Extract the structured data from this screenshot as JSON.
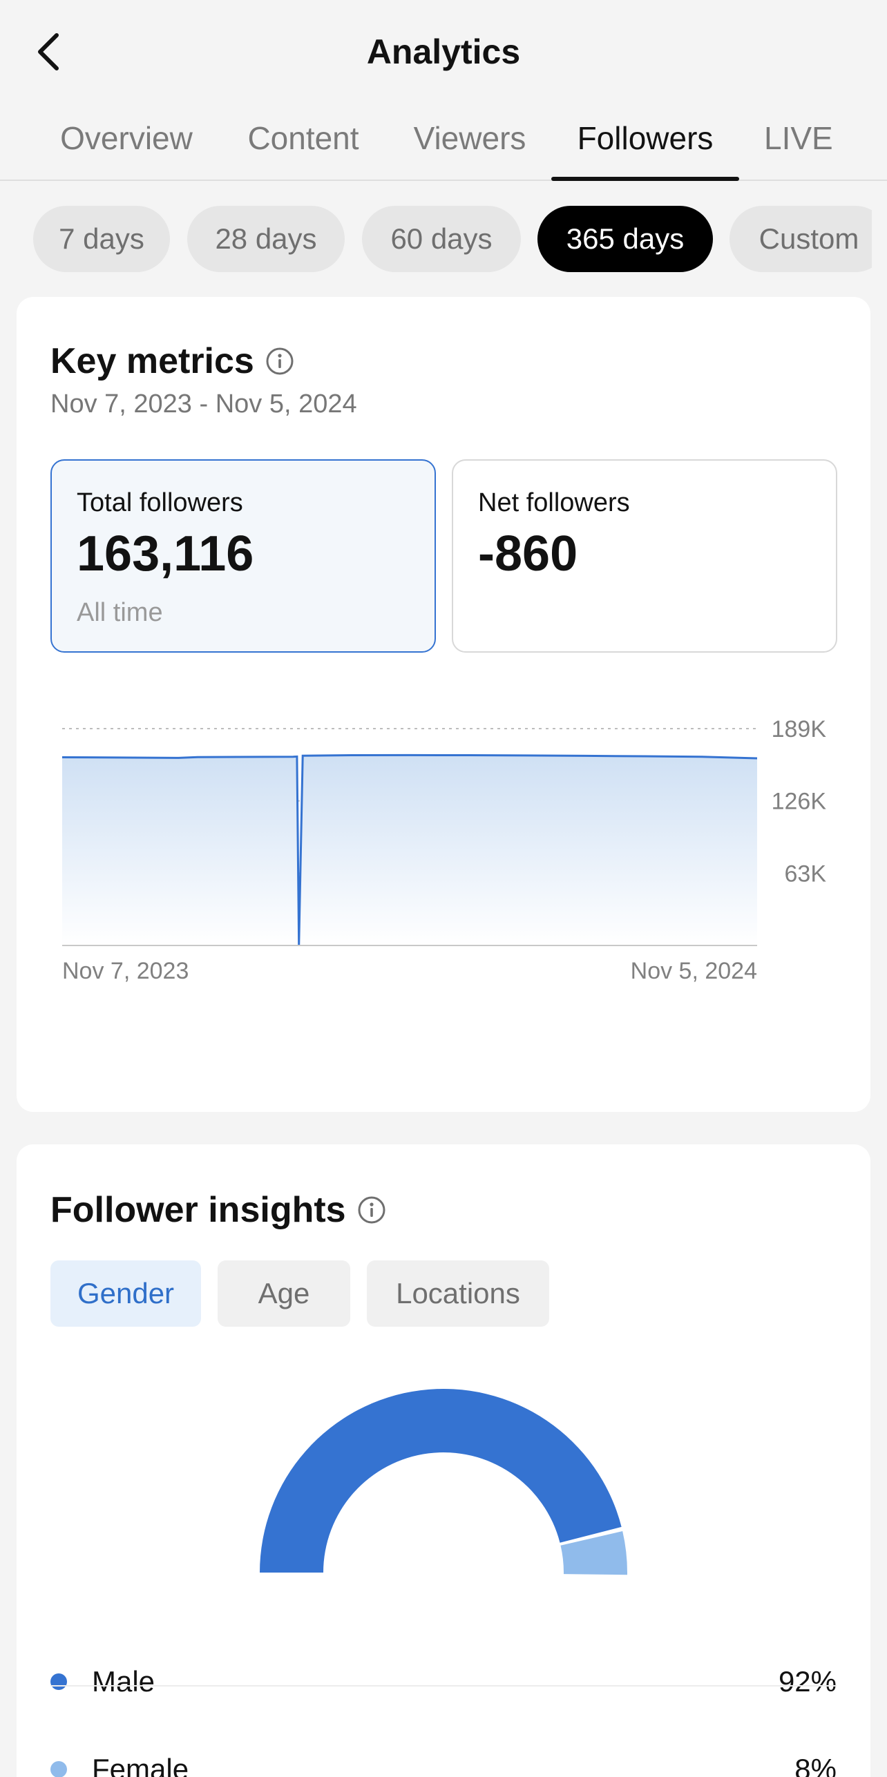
{
  "header": {
    "title": "Analytics",
    "back_icon": "chevron-left-icon"
  },
  "tabs": [
    {
      "label": "Overview",
      "active": false
    },
    {
      "label": "Content",
      "active": false
    },
    {
      "label": "Viewers",
      "active": false
    },
    {
      "label": "Followers",
      "active": true
    },
    {
      "label": "LIVE",
      "active": false
    }
  ],
  "ranges": [
    {
      "label": "7 days",
      "active": false
    },
    {
      "label": "28 days",
      "active": false
    },
    {
      "label": "60 days",
      "active": false
    },
    {
      "label": "365 days",
      "active": true
    },
    {
      "label": "Custom",
      "active": false
    }
  ],
  "key_metrics": {
    "title": "Key metrics",
    "date_range": "Nov 7, 2023 - Nov 5, 2024",
    "total": {
      "label": "Total followers",
      "value": "163,116",
      "sub": "All time"
    },
    "net": {
      "label": "Net followers",
      "value": "-860"
    }
  },
  "chart_data": {
    "type": "area",
    "x_start_label": "Nov 7, 2023",
    "x_end_label": "Nov 5, 2024",
    "y_tick_labels": [
      "189K",
      "126K",
      "63K"
    ],
    "y_ticks": [
      189000,
      126000,
      63000
    ],
    "ylim": [
      0,
      189000
    ],
    "x": [
      "2023-11-07",
      "2023-12-07",
      "2024-01-07",
      "2024-01-17",
      "2024-02-07",
      "2024-03-07",
      "2024-03-09",
      "2024-03-10",
      "2024-03-12",
      "2024-04-07",
      "2024-05-07",
      "2024-06-07",
      "2024-07-07",
      "2024-08-07",
      "2024-09-07",
      "2024-10-07",
      "2024-11-05"
    ],
    "values": [
      164000,
      163800,
      163500,
      164200,
      164300,
      164500,
      164700,
      0,
      165400,
      165800,
      165900,
      165800,
      165600,
      165300,
      164900,
      164500,
      163116
    ],
    "line_color": "#3573d1",
    "fill_color_top": "#cfe0f4",
    "fill_color_bottom": "#ffffff",
    "grid": true
  },
  "follower_insights": {
    "title": "Follower insights",
    "tabs": [
      {
        "label": "Gender",
        "active": true
      },
      {
        "label": "Age",
        "active": false
      },
      {
        "label": "Locations",
        "active": false
      }
    ],
    "gender": {
      "type": "pie",
      "slices": [
        {
          "name": "Male",
          "value": 92,
          "label": "92%",
          "color": "#3573d1"
        },
        {
          "name": "Female",
          "value": 8,
          "label": "8%",
          "color": "#90bbeb"
        }
      ]
    }
  }
}
